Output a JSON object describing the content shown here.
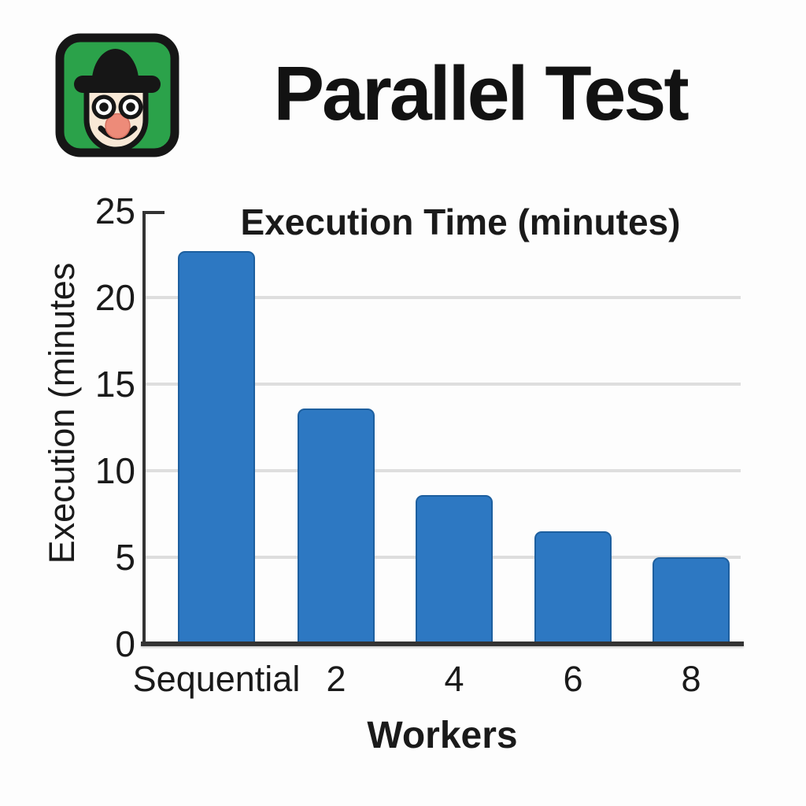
{
  "header": {
    "title": "Parallel Test",
    "logo": {
      "icon": "bowler-hat-face-logo",
      "bg_color": "#2ba24a",
      "outline_color": "#161616",
      "face_color": "#f8e8d6",
      "eye_white": "#ffffff",
      "nose_color": "#ed8b79"
    }
  },
  "chart_data": {
    "type": "bar",
    "title": "Execution Time (minutes)",
    "xlabel": "Workers",
    "ylabel": "Execution (minutes",
    "categories": [
      "Sequential",
      "2",
      "4",
      "6",
      "8"
    ],
    "values": [
      22.7,
      13.6,
      8.6,
      6.5,
      5.0
    ],
    "yticks": [
      0,
      5,
      10,
      15,
      20,
      25
    ],
    "ylim": [
      0,
      25
    ],
    "grid": "horizontal",
    "legend": "none",
    "colors": {
      "bar": "#2d78c2",
      "bar_border": "#1d5f9f",
      "grid": "#dedede",
      "axis": "#333333"
    }
  }
}
